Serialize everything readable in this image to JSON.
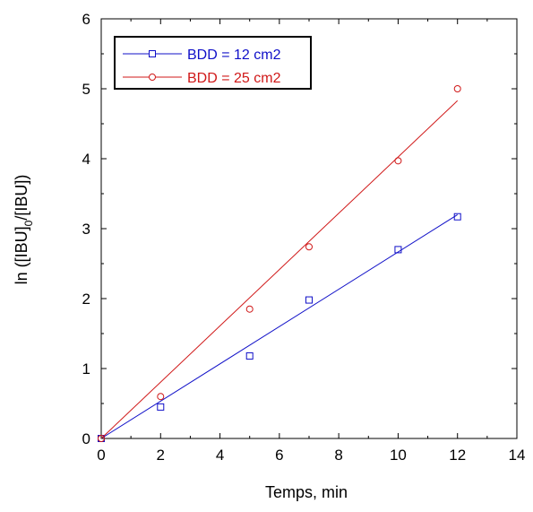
{
  "chart_data": {
    "type": "scatter",
    "title": "",
    "xlabel": "Temps, min",
    "ylabel": "ln ([IBU]0/[IBU])",
    "ylabel_parts": {
      "pre": "ln ([IBU]",
      "sub": "0",
      "post": "/[IBU])"
    },
    "xlim": [
      0,
      14
    ],
    "ylim": [
      0,
      6
    ],
    "x_ticks": [
      0,
      2,
      4,
      6,
      8,
      10,
      12,
      14
    ],
    "y_ticks": [
      0,
      1,
      2,
      3,
      4,
      5,
      6
    ],
    "x_tick_labels": [
      "0",
      "2",
      "4",
      "6",
      "8",
      "10",
      "12",
      "14"
    ],
    "y_tick_labels": [
      "0",
      "1",
      "2",
      "3",
      "4",
      "5",
      "6"
    ],
    "grid": false,
    "legend_position": "top-left",
    "series": [
      {
        "name": "BDD = 12 cm2",
        "marker": "square",
        "color": "#1010c8",
        "x": [
          0,
          2,
          5,
          7,
          10,
          12
        ],
        "y": [
          0,
          0.45,
          1.18,
          1.98,
          2.7,
          3.17
        ],
        "fit_line": {
          "x": [
            0,
            12
          ],
          "y": [
            0,
            3.2
          ]
        }
      },
      {
        "name": "BDD = 25 cm2",
        "marker": "circle",
        "color": "#d01818",
        "x": [
          0,
          2,
          5,
          7,
          10,
          12
        ],
        "y": [
          0,
          0.6,
          1.85,
          2.74,
          3.97,
          5.0
        ],
        "fit_line": {
          "x": [
            0,
            12
          ],
          "y": [
            0,
            4.83
          ]
        }
      }
    ]
  }
}
